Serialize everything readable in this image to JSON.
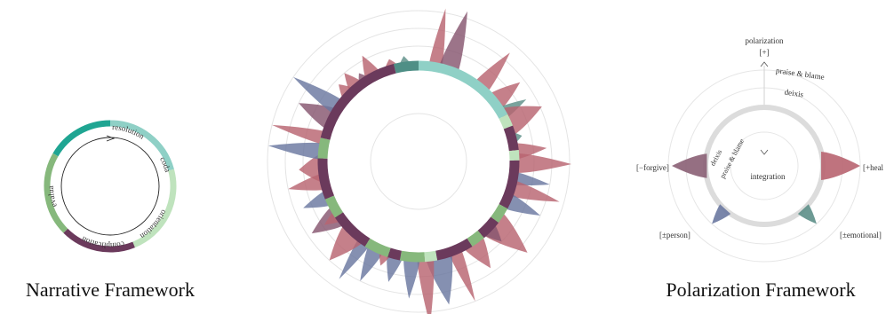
{
  "narrative": {
    "caption": "Narrative Framework",
    "segments": [
      {
        "label": "orientation",
        "color": "#8fd0c6"
      },
      {
        "label": "complication",
        "color": "#bfe3bd"
      },
      {
        "label": "evaluation",
        "color": "#6b3a5c"
      },
      {
        "label": "resolution",
        "color": "#86b87c"
      },
      {
        "label": "coda",
        "color": "#1fa592"
      }
    ]
  },
  "middle": {
    "segments": [
      {
        "color": "#8fd0c6",
        "weight": 2.6
      },
      {
        "color": "#bfe3bd",
        "weight": 0.3
      },
      {
        "color": "#6b3a5c",
        "weight": 0.6
      },
      {
        "color": "#bfe3bd",
        "weight": 0.25
      },
      {
        "color": "#6b3a5c",
        "weight": 1.2
      },
      {
        "color": "#86b87c",
        "weight": 0.4
      },
      {
        "color": "#6b3a5c",
        "weight": 0.5
      },
      {
        "color": "#86b87c",
        "weight": 0.35
      },
      {
        "color": "#6b3a5c",
        "weight": 0.9
      },
      {
        "color": "#bfe3bd",
        "weight": 0.3
      },
      {
        "color": "#86b87c",
        "weight": 0.6
      },
      {
        "color": "#6b3a5c",
        "weight": 0.3
      },
      {
        "color": "#86b87c",
        "weight": 0.6
      },
      {
        "color": "#6b3a5c",
        "weight": 1.0
      },
      {
        "color": "#86b87c",
        "weight": 0.5
      },
      {
        "color": "#6b3a5c",
        "weight": 1.0
      },
      {
        "color": "#86b87c",
        "weight": 0.5
      },
      {
        "color": "#6b3a5c",
        "weight": 2.6
      },
      {
        "color": "#4f8f86",
        "weight": 0.6
      }
    ]
  },
  "polarization": {
    "caption": "Polarization Framework",
    "axis_title": "polarization",
    "plus_label": "[+]",
    "outer_labels": {
      "top_1": "praise & blame",
      "top_2": "deixis",
      "inner_1": "deixis",
      "inner_2": "praise & blame",
      "center": "integration"
    },
    "axes": {
      "left": "[−forgive]",
      "right": "[+heal",
      "bottom_left": "[±person]",
      "bottom_right": "[±emotional]"
    },
    "colors": {
      "red": "#b86470",
      "mauve": "#8a5f74",
      "slate": "#6a78a0",
      "teal": "#5d8f88"
    }
  }
}
